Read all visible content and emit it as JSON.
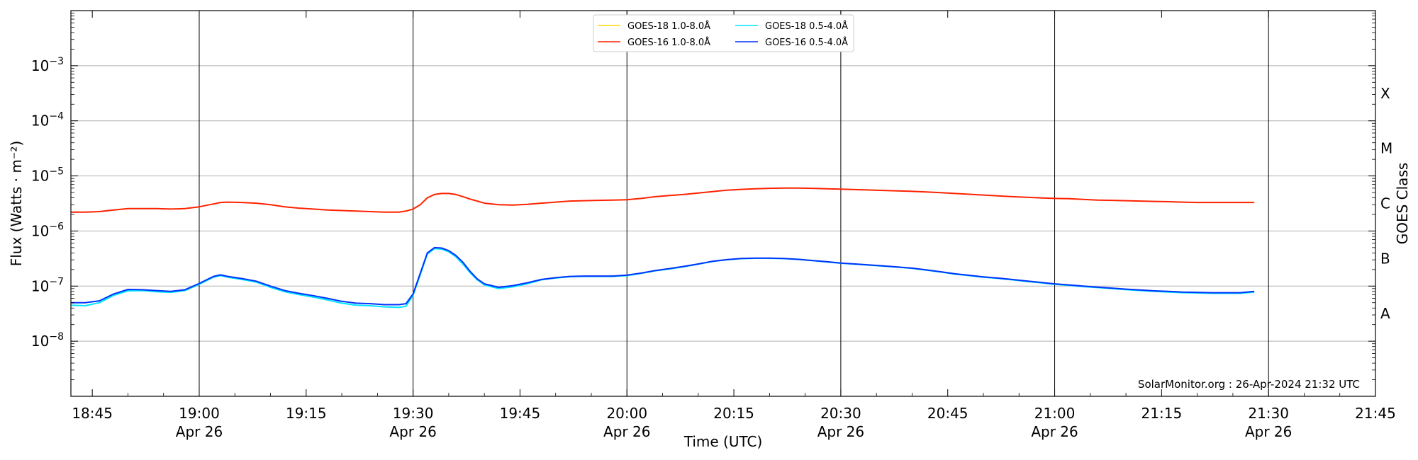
{
  "chart_data": {
    "type": "line",
    "xlabel": "Time (UTC)",
    "ylabel": "Flux (Watts · m⁻²)",
    "right_axis_label": "GOES Class",
    "credit": "SolarMonitor.org : 26-Apr-2024 21:32 UTC",
    "x_unit": "minutes after 18:00 UTC, 26-Apr-2024",
    "xlim": [
      102,
      285
    ],
    "ylim_log10": [
      -9,
      -2
    ],
    "log_scale_y": true,
    "grid": "horizontal at decades, vertical at hours and half-hours",
    "legend_placement": "top-center",
    "x_ticks": [
      {
        "t": 105,
        "time": "18:45",
        "date": ""
      },
      {
        "t": 120,
        "time": "19:00",
        "date": "Apr 26"
      },
      {
        "t": 135,
        "time": "19:15",
        "date": ""
      },
      {
        "t": 150,
        "time": "19:30",
        "date": "Apr 26"
      },
      {
        "t": 165,
        "time": "19:45",
        "date": ""
      },
      {
        "t": 180,
        "time": "20:00",
        "date": "Apr 26"
      },
      {
        "t": 195,
        "time": "20:15",
        "date": ""
      },
      {
        "t": 210,
        "time": "20:30",
        "date": "Apr 26"
      },
      {
        "t": 225,
        "time": "20:45",
        "date": ""
      },
      {
        "t": 240,
        "time": "21:00",
        "date": "Apr 26"
      },
      {
        "t": 255,
        "time": "21:15",
        "date": ""
      },
      {
        "t": 270,
        "time": "21:30",
        "date": "Apr 26"
      },
      {
        "t": 285,
        "time": "21:45",
        "date": ""
      }
    ],
    "y_ticks": [
      {
        "exp": -8,
        "label": "10",
        "sup": "−8"
      },
      {
        "exp": -7,
        "label": "10",
        "sup": "−7"
      },
      {
        "exp": -6,
        "label": "10",
        "sup": "−6"
      },
      {
        "exp": -5,
        "label": "10",
        "sup": "−5"
      },
      {
        "exp": -4,
        "label": "10",
        "sup": "−4"
      },
      {
        "exp": -3,
        "label": "10",
        "sup": "−3"
      }
    ],
    "goes_classes": [
      {
        "label": "A",
        "exp": -7.5
      },
      {
        "label": "B",
        "exp": -6.5
      },
      {
        "label": "C",
        "exp": -5.5
      },
      {
        "label": "M",
        "exp": -4.5
      },
      {
        "label": "X",
        "exp": -3.5
      }
    ],
    "series": [
      {
        "name": "GOES-18 1.0-8.0Å",
        "color": "#ffd700",
        "x": [],
        "y": []
      },
      {
        "name": "GOES-16 1.0-8.0Å",
        "color": "#ff2200",
        "x": [
          102,
          104,
          106,
          108,
          110,
          112,
          114,
          116,
          118,
          120,
          122,
          123,
          124,
          126,
          128,
          130,
          132,
          134,
          136,
          138,
          140,
          142,
          144,
          146,
          148,
          149,
          150,
          151,
          152,
          153,
          154,
          155,
          156,
          157,
          158,
          159,
          160,
          162,
          164,
          166,
          168,
          170,
          172,
          174,
          176,
          178,
          180,
          182,
          184,
          186,
          188,
          190,
          192,
          194,
          196,
          198,
          200,
          202,
          204,
          206,
          208,
          210,
          212,
          214,
          216,
          218,
          220,
          222,
          224,
          226,
          228,
          230,
          232,
          234,
          236,
          238,
          240,
          242,
          244,
          246,
          248,
          250,
          252,
          254,
          256,
          258,
          260,
          262,
          264,
          266,
          268
        ],
        "y": [
          2.2e-06,
          2.2e-06,
          2.25e-06,
          2.4e-06,
          2.55e-06,
          2.55e-06,
          2.55e-06,
          2.5e-06,
          2.55e-06,
          2.75e-06,
          3.1e-06,
          3.3e-06,
          3.35e-06,
          3.3e-06,
          3.2e-06,
          3e-06,
          2.75e-06,
          2.6e-06,
          2.5e-06,
          2.4e-06,
          2.35e-06,
          2.3e-06,
          2.25e-06,
          2.2e-06,
          2.2e-06,
          2.3e-06,
          2.5e-06,
          3e-06,
          4e-06,
          4.6e-06,
          4.8e-06,
          4.8e-06,
          4.6e-06,
          4.2e-06,
          3.8e-06,
          3.5e-06,
          3.2e-06,
          3e-06,
          2.95e-06,
          3.05e-06,
          3.2e-06,
          3.35e-06,
          3.5e-06,
          3.55e-06,
          3.6e-06,
          3.65e-06,
          3.7e-06,
          3.9e-06,
          4.2e-06,
          4.4e-06,
          4.6e-06,
          4.9e-06,
          5.2e-06,
          5.5e-06,
          5.7e-06,
          5.85e-06,
          5.95e-06,
          6e-06,
          6e-06,
          5.95e-06,
          5.85e-06,
          5.75e-06,
          5.65e-06,
          5.55e-06,
          5.45e-06,
          5.35e-06,
          5.25e-06,
          5.1e-06,
          4.95e-06,
          4.8e-06,
          4.65e-06,
          4.5e-06,
          4.35e-06,
          4.2e-06,
          4.1e-06,
          4e-06,
          3.9e-06,
          3.85e-06,
          3.75e-06,
          3.65e-06,
          3.6e-06,
          3.55e-06,
          3.5e-06,
          3.45e-06,
          3.4e-06,
          3.35e-06,
          3.3e-06,
          3.3e-06,
          3.3e-06,
          3.3e-06,
          3.3e-06
        ]
      },
      {
        "name": "GOES-18 0.5-4.0Å",
        "color": "#00e5ff",
        "x": [
          102,
          104,
          106,
          108,
          110,
          112,
          114,
          116,
          118,
          120,
          122,
          123,
          124,
          126,
          128,
          130,
          132,
          134,
          136,
          138,
          140,
          142,
          144,
          146,
          148,
          149,
          150,
          151,
          152,
          153,
          154,
          155,
          156,
          157,
          158,
          159,
          160,
          162,
          164,
          166,
          168,
          170,
          172,
          174,
          176,
          178,
          180,
          182,
          184,
          186,
          188,
          190,
          192,
          194,
          196,
          198,
          200,
          202,
          204,
          206,
          208,
          210,
          212,
          214,
          216,
          218,
          220,
          222,
          224,
          226,
          228,
          230,
          232,
          234,
          236,
          238,
          240,
          242,
          244,
          246,
          248,
          250,
          252,
          254,
          256,
          258,
          260,
          262,
          264,
          266,
          268
        ],
        "y": [
          4.5e-08,
          4.4e-08,
          5e-08,
          6.8e-08,
          8.2e-08,
          8.3e-08,
          7.9e-08,
          7.7e-08,
          8.3e-08,
          1.08e-07,
          1.45e-07,
          1.55e-07,
          1.45e-07,
          1.32e-07,
          1.18e-07,
          9.5e-08,
          7.9e-08,
          7e-08,
          6.3e-08,
          5.6e-08,
          4.9e-08,
          4.5e-08,
          4.4e-08,
          4.2e-08,
          4.1e-08,
          4.3e-08,
          6.8e-08,
          1.6e-07,
          3.8e-07,
          4.8e-07,
          4.7e-07,
          4.2e-07,
          3.4e-07,
          2.5e-07,
          1.75e-07,
          1.3e-07,
          1.05e-07,
          9e-08,
          9.7e-08,
          1.1e-07,
          1.3e-07,
          1.4e-07,
          1.48e-07,
          1.5e-07,
          1.5e-07,
          1.5e-07,
          1.55e-07,
          1.7e-07,
          1.9e-07,
          2.05e-07,
          2.25e-07,
          2.5e-07,
          2.8e-07,
          3e-07,
          3.15e-07,
          3.2e-07,
          3.2e-07,
          3.15e-07,
          3.05e-07,
          2.9e-07,
          2.75e-07,
          2.6e-07,
          2.5e-07,
          2.4e-07,
          2.3e-07,
          2.2e-07,
          2.1e-07,
          1.95e-07,
          1.8e-07,
          1.65e-07,
          1.55e-07,
          1.45e-07,
          1.38e-07,
          1.3e-07,
          1.22e-07,
          1.15e-07,
          1.08e-07,
          1.03e-07,
          9.8e-08,
          9.4e-08,
          9e-08,
          8.6e-08,
          8.3e-08,
          8e-08,
          7.8e-08,
          7.6e-08,
          7.5e-08,
          7.4e-08,
          7.4e-08,
          7.4e-08,
          7.8e-08
        ]
      },
      {
        "name": "GOES-16 0.5-4.0Å",
        "color": "#0033ff",
        "x": [
          102,
          104,
          106,
          108,
          110,
          112,
          114,
          116,
          118,
          120,
          122,
          123,
          124,
          126,
          128,
          130,
          132,
          134,
          136,
          138,
          140,
          142,
          144,
          146,
          148,
          149,
          150,
          151,
          152,
          153,
          154,
          155,
          156,
          157,
          158,
          159,
          160,
          162,
          164,
          166,
          168,
          170,
          172,
          174,
          176,
          178,
          180,
          182,
          184,
          186,
          188,
          190,
          192,
          194,
          196,
          198,
          200,
          202,
          204,
          206,
          208,
          210,
          212,
          214,
          216,
          218,
          220,
          222,
          224,
          226,
          228,
          230,
          232,
          234,
          236,
          238,
          240,
          242,
          244,
          246,
          248,
          250,
          252,
          254,
          256,
          258,
          260,
          262,
          264,
          266,
          268
        ],
        "y": [
          5e-08,
          5e-08,
          5.4e-08,
          7.2e-08,
          8.7e-08,
          8.6e-08,
          8.3e-08,
          8e-08,
          8.6e-08,
          1.12e-07,
          1.5e-07,
          1.6e-07,
          1.5e-07,
          1.37e-07,
          1.23e-07,
          1e-07,
          8.3e-08,
          7.4e-08,
          6.7e-08,
          6e-08,
          5.3e-08,
          4.9e-08,
          4.8e-08,
          4.6e-08,
          4.6e-08,
          4.8e-08,
          7.2e-08,
          1.7e-07,
          4e-07,
          5e-07,
          4.9e-07,
          4.4e-07,
          3.6e-07,
          2.7e-07,
          1.85e-07,
          1.35e-07,
          1.1e-07,
          9.5e-08,
          1.02e-07,
          1.15e-07,
          1.32e-07,
          1.42e-07,
          1.5e-07,
          1.52e-07,
          1.52e-07,
          1.52e-07,
          1.58e-07,
          1.72e-07,
          1.92e-07,
          2.08e-07,
          2.28e-07,
          2.52e-07,
          2.82e-07,
          3.02e-07,
          3.17e-07,
          3.22e-07,
          3.22e-07,
          3.17e-07,
          3.07e-07,
          2.92e-07,
          2.77e-07,
          2.62e-07,
          2.52e-07,
          2.42e-07,
          2.32e-07,
          2.22e-07,
          2.12e-07,
          1.97e-07,
          1.82e-07,
          1.67e-07,
          1.57e-07,
          1.47e-07,
          1.4e-07,
          1.32e-07,
          1.24e-07,
          1.17e-07,
          1.1e-07,
          1.05e-07,
          1e-07,
          9.6e-08,
          9.2e-08,
          8.8e-08,
          8.5e-08,
          8.2e-08,
          8e-08,
          7.8e-08,
          7.7e-08,
          7.6e-08,
          7.6e-08,
          7.6e-08,
          8e-08
        ]
      }
    ],
    "legend_order": [
      0,
      2,
      1,
      3
    ]
  }
}
